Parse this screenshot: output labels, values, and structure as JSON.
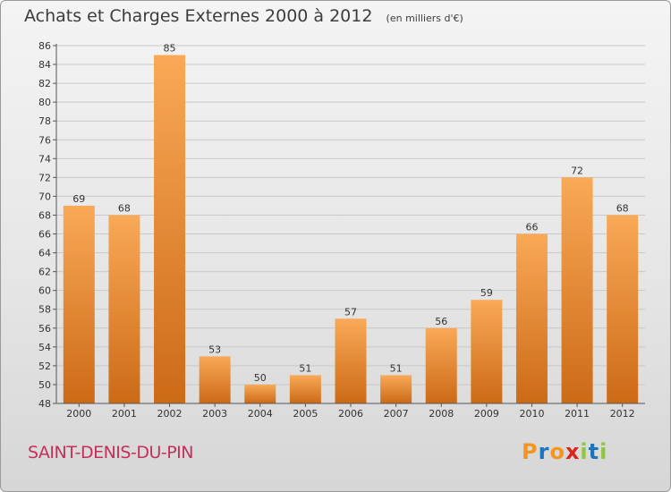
{
  "header": {
    "title": "Achats et Charges Externes 2000 à 2012",
    "unit": "(en milliers d'€)"
  },
  "footer": {
    "commune": "SAINT-DENIS-DU-PIN",
    "logo_text": "Proxiti",
    "logo_colors": [
      "#f7941d",
      "#1a75bc",
      "#f7941d",
      "#d9261c",
      "#8dc63f",
      "#1a75bc",
      "#8dc63f"
    ]
  },
  "colors": {
    "bar_light": "#f9a957",
    "bar_dark": "#cc6a16",
    "grid": "#c8c8c8",
    "axis": "#555555",
    "commune": "#c4305a"
  },
  "chart_data": {
    "type": "bar",
    "title": "Achats et Charges Externes 2000 à 2012",
    "subtitle": "(en milliers d'€)",
    "categories": [
      "2000",
      "2001",
      "2002",
      "2003",
      "2004",
      "2005",
      "2006",
      "2007",
      "2008",
      "2009",
      "2010",
      "2011",
      "2012"
    ],
    "values": [
      69,
      68,
      85,
      53,
      50,
      51,
      57,
      51,
      56,
      59,
      66,
      72,
      68
    ],
    "ylim": [
      48,
      86
    ],
    "yticks": [
      48,
      50,
      52,
      54,
      56,
      58,
      60,
      62,
      64,
      66,
      68,
      70,
      72,
      74,
      76,
      78,
      80,
      82,
      84,
      86
    ],
    "grid": true,
    "data_labels": true
  }
}
